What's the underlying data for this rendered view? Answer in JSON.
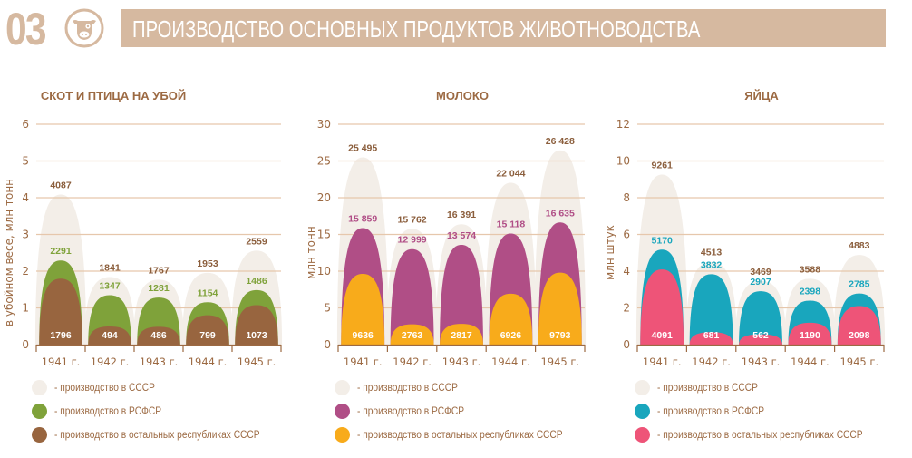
{
  "header": {
    "number": "03",
    "icon": "cow-icon",
    "title": "ПРОИЗВОДСТВО ОСНОВНЫХ ПРОДУКТОВ ЖИВОТНОВОДСТВА",
    "accent_color": "#d6b9a0"
  },
  "chart_data": [
    {
      "type": "area",
      "title": "СКОТ И ПТИЦА НА УБОЙ",
      "ylabel": "в убойном весе, млн тонн",
      "xlabel": "",
      "ylim": [
        0,
        6
      ],
      "yticks": [
        "0",
        "1",
        "2",
        "3",
        "4",
        "5",
        "6"
      ],
      "categories": [
        "1941 г.",
        "1942 г.",
        "1943 г.",
        "1944 г.",
        "1945 г."
      ],
      "unit_divisor": 1000,
      "grid": true,
      "series": [
        {
          "name": "производство в СССР",
          "color": "#f3eee8",
          "label_color": "#8b5e3c",
          "values": [
            4087,
            1841,
            1767,
            1953,
            2559
          ],
          "labels": [
            "4087",
            "1841",
            "1767",
            "1953",
            "2559"
          ]
        },
        {
          "name": "производство в РСФСР",
          "color": "#7fa23a",
          "label_color": "#7fa23a",
          "values": [
            2291,
            1347,
            1281,
            1154,
            1486
          ],
          "labels": [
            "2291",
            "1347",
            "1281",
            "1154",
            "1486"
          ]
        },
        {
          "name": "производство в остальных республиках СССР",
          "color": "#98653f",
          "label_color": "#ffffff",
          "values": [
            1796,
            494,
            486,
            799,
            1073
          ],
          "labels": [
            "1796",
            "494",
            "486",
            "799",
            "1073"
          ]
        }
      ],
      "legend": [
        "- производство в СССР",
        "- производство в РСФСР",
        "- производство в остальных республиках СССР"
      ],
      "legend_position": "bottom-left"
    },
    {
      "type": "area",
      "title": "МОЛОКО",
      "ylabel": "млн тонн",
      "xlabel": "",
      "ylim": [
        0,
        30
      ],
      "yticks": [
        "0",
        "5",
        "10",
        "15",
        "20",
        "25",
        "30"
      ],
      "categories": [
        "1941 г.",
        "1942 г.",
        "1943 г.",
        "1944 г.",
        "1945 г."
      ],
      "unit_divisor": 1000,
      "grid": true,
      "series": [
        {
          "name": "производство в СССР",
          "color": "#f3eee8",
          "label_color": "#8b5e3c",
          "values": [
            25495,
            15762,
            16391,
            22044,
            26428
          ],
          "labels": [
            "25 495",
            "15 762",
            "16 391",
            "22 044",
            "26 428"
          ]
        },
        {
          "name": "производство в РСФСР",
          "color": "#b04e86",
          "label_color": "#b04e86",
          "values": [
            15859,
            12999,
            13574,
            15118,
            16635
          ],
          "labels": [
            "15 859",
            "12 999",
            "13 574",
            "15 118",
            "16 635"
          ]
        },
        {
          "name": "производство в остальных республиках СССР",
          "color": "#f8ab1b",
          "label_color": "#ffffff",
          "values": [
            9636,
            2763,
            2817,
            6926,
            9793
          ],
          "labels": [
            "9636",
            "2763",
            "2817",
            "6926",
            "9793"
          ]
        }
      ],
      "legend": [
        "- производство в СССР",
        "- производство в РСФСР",
        "- производство в остальных республиках СССР"
      ],
      "legend_position": "bottom-left"
    },
    {
      "type": "area",
      "title": "ЯЙЦА",
      "ylabel": "млн штук",
      "xlabel": "",
      "ylim": [
        0,
        12
      ],
      "yticks": [
        "0",
        "2",
        "4",
        "6",
        "8",
        "10",
        "12"
      ],
      "categories": [
        "1941 г.",
        "1942 г.",
        "1943 г.",
        "1944 г.",
        "1945 г."
      ],
      "unit_divisor": 1000,
      "grid": true,
      "series": [
        {
          "name": "производство в СССР",
          "color": "#f3eee8",
          "label_color": "#8b5e3c",
          "values": [
            9261,
            4513,
            3469,
            3588,
            4883
          ],
          "labels": [
            "9261",
            "4513",
            "3469",
            "3588",
            "4883"
          ]
        },
        {
          "name": "производство в РСФСР",
          "color": "#19a6bd",
          "label_color": "#19a6bd",
          "values": [
            5170,
            3832,
            2907,
            2398,
            2785
          ],
          "labels": [
            "5170",
            "3832",
            "2907",
            "2398",
            "2785"
          ]
        },
        {
          "name": "производство в остальных республиках СССР",
          "color": "#ee5478",
          "label_color": "#ffffff",
          "values": [
            4091,
            681,
            562,
            1190,
            2098
          ],
          "labels": [
            "4091",
            "681",
            "562",
            "1190",
            "2098"
          ]
        }
      ],
      "legend": [
        "- производство в СССР",
        "- производство в РСФСР",
        "- производство в остальных республиках СССР"
      ],
      "legend_position": "bottom-left"
    }
  ]
}
